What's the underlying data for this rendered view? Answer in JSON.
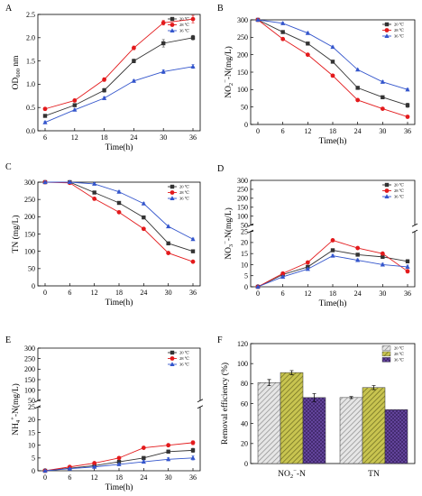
{
  "chart_data": [
    {
      "panel": "A",
      "type": "line",
      "x": [
        6,
        12,
        18,
        24,
        30,
        36
      ],
      "xlabel": "Time(h)",
      "ylabel": "OD600 nm",
      "xlim": [
        6,
        36
      ],
      "ylim": [
        0,
        2.5
      ],
      "yticks": [
        "0.0",
        "0.5",
        "1.0",
        "1.5",
        "2.0",
        "2.5"
      ],
      "legend": "top-right",
      "series": [
        {
          "name": "20 ℃",
          "color": "#333333",
          "marker": "square",
          "values": [
            0.32,
            0.55,
            0.87,
            1.5,
            1.88,
            2.0
          ],
          "err": [
            0.03,
            0.03,
            0.04,
            0.04,
            0.08,
            0.05
          ]
        },
        {
          "name": "28 ℃",
          "color": "#e31a1c",
          "marker": "circle",
          "values": [
            0.47,
            0.65,
            1.1,
            1.78,
            2.32,
            2.4
          ],
          "err": [
            0.03,
            0.03,
            0.04,
            0.04,
            0.05,
            0.08
          ]
        },
        {
          "name": "36 ℃",
          "color": "#3355cc",
          "marker": "triangle",
          "values": [
            0.18,
            0.45,
            0.7,
            1.07,
            1.27,
            1.38
          ],
          "err": [
            0.02,
            0.02,
            0.03,
            0.03,
            0.04,
            0.04
          ]
        }
      ]
    },
    {
      "panel": "B",
      "type": "line",
      "x": [
        0,
        6,
        12,
        18,
        24,
        30,
        36
      ],
      "xlabel": "Time(h)",
      "ylabel": "NO2−-N(mg/L)",
      "xlim": [
        0,
        36
      ],
      "ylim": [
        0,
        300
      ],
      "yticks": [
        "0",
        "50",
        "100",
        "150",
        "200",
        "250",
        "300"
      ],
      "legend": "top-right",
      "series": [
        {
          "name": "20 ℃",
          "color": "#333333",
          "marker": "square",
          "values": [
            300,
            265,
            232,
            180,
            105,
            78,
            55
          ],
          "err": [
            2,
            3,
            3,
            3,
            3,
            4,
            6
          ]
        },
        {
          "name": "28 ℃",
          "color": "#e31a1c",
          "marker": "circle",
          "values": [
            300,
            245,
            200,
            140,
            70,
            45,
            22
          ],
          "err": [
            2,
            3,
            3,
            3,
            3,
            3,
            3
          ]
        },
        {
          "name": "36 ℃",
          "color": "#3355cc",
          "marker": "triangle",
          "values": [
            300,
            290,
            262,
            222,
            157,
            122,
            100
          ],
          "err": [
            2,
            3,
            3,
            3,
            3,
            3,
            3
          ]
        }
      ]
    },
    {
      "panel": "C",
      "type": "line",
      "x": [
        0,
        6,
        12,
        18,
        24,
        30,
        36
      ],
      "xlabel": "Time(h)",
      "ylabel": "TN (mg/L)",
      "xlim": [
        0,
        36
      ],
      "ylim": [
        0,
        300
      ],
      "yticks": [
        "0",
        "50",
        "100",
        "150",
        "200",
        "250",
        "300"
      ],
      "legend": "top-right",
      "series": [
        {
          "name": "20 ℃",
          "color": "#333333",
          "marker": "square",
          "values": [
            300,
            300,
            270,
            240,
            198,
            123,
            100
          ],
          "err": [
            2,
            2,
            3,
            3,
            3,
            3,
            3
          ]
        },
        {
          "name": "28 ℃",
          "color": "#e31a1c",
          "marker": "circle",
          "values": [
            300,
            298,
            252,
            213,
            165,
            95,
            70
          ],
          "err": [
            2,
            2,
            3,
            3,
            3,
            3,
            3
          ]
        },
        {
          "name": "36 ℃",
          "color": "#3355cc",
          "marker": "triangle",
          "values": [
            300,
            300,
            295,
            272,
            238,
            172,
            135
          ],
          "err": [
            2,
            2,
            3,
            3,
            3,
            3,
            3
          ]
        }
      ]
    },
    {
      "panel": "D",
      "type": "line",
      "x": [
        0,
        6,
        12,
        18,
        24,
        30,
        36
      ],
      "xlabel": "Time(h)",
      "ylabel": "NO3−-N(mg/L)",
      "xlim": [
        0,
        36
      ],
      "ylim": [
        0,
        300
      ],
      "axis_break": [
        25,
        50
      ],
      "yticks": [
        "0",
        "5",
        "10",
        "15",
        "20",
        "25",
        "50",
        "100",
        "150",
        "200",
        "250",
        "300"
      ],
      "legend": "top-right",
      "series": [
        {
          "name": "20 ℃",
          "color": "#333333",
          "marker": "square",
          "values": [
            0,
            5.5,
            9,
            16.5,
            14.5,
            13.5,
            11.5
          ],
          "err": [
            0.2,
            0.4,
            0.5,
            0.6,
            0.6,
            0.6,
            0.8
          ]
        },
        {
          "name": "28 ℃",
          "color": "#e31a1c",
          "marker": "circle",
          "values": [
            0,
            6,
            11,
            21,
            17.5,
            15,
            7
          ],
          "err": [
            0.2,
            0.4,
            0.5,
            0.6,
            0.6,
            0.6,
            0.8
          ]
        },
        {
          "name": "36 ℃",
          "color": "#3355cc",
          "marker": "triangle",
          "values": [
            0,
            4.5,
            8,
            14,
            12,
            10,
            9
          ],
          "err": [
            0.2,
            0.4,
            0.5,
            0.6,
            0.6,
            0.6,
            0.8
          ]
        }
      ]
    },
    {
      "panel": "E",
      "type": "line",
      "x": [
        0,
        6,
        12,
        18,
        24,
        30,
        36
      ],
      "xlabel": "Time(h)",
      "ylabel": "NH4+-N(mg/L)",
      "xlim": [
        0,
        36
      ],
      "ylim": [
        0,
        300
      ],
      "axis_break": [
        25,
        50
      ],
      "yticks": [
        "0",
        "5",
        "10",
        "15",
        "20",
        "25",
        "50",
        "100",
        "150",
        "200",
        "250",
        "300"
      ],
      "legend": "top-right",
      "series": [
        {
          "name": "20 ℃",
          "color": "#333333",
          "marker": "square",
          "values": [
            0,
            1,
            2,
            3.5,
            5,
            7.5,
            8
          ],
          "err": [
            0.2,
            0.3,
            0.3,
            0.4,
            0.5,
            0.6,
            0.8
          ]
        },
        {
          "name": "28 ℃",
          "color": "#e31a1c",
          "marker": "circle",
          "values": [
            0,
            1.5,
            3,
            5,
            9,
            10,
            11
          ],
          "err": [
            0.2,
            0.3,
            0.3,
            0.4,
            0.5,
            0.6,
            0.8
          ]
        },
        {
          "name": "36 ℃",
          "color": "#3355cc",
          "marker": "triangle",
          "values": [
            0,
            0.8,
            1.5,
            2.5,
            3.5,
            4.5,
            5
          ],
          "err": [
            0.2,
            0.3,
            0.3,
            0.4,
            0.5,
            0.6,
            0.8
          ]
        }
      ]
    },
    {
      "panel": "F",
      "type": "bar",
      "categories": [
        "NO2−-N",
        "TN"
      ],
      "xlabel": "",
      "ylabel": "Removal efficiency (%)",
      "ylim": [
        0,
        120
      ],
      "yticks": [
        "0",
        "20",
        "40",
        "60",
        "80",
        "100",
        "120"
      ],
      "legend": "top-right",
      "series": [
        {
          "name": "20 ℃",
          "color": "#d9d9d9",
          "hatch": "diagonal",
          "values": [
            81,
            66
          ],
          "err": [
            3,
            1
          ]
        },
        {
          "name": "28 ℃",
          "color": "#b5b23a",
          "hatch": "diagonal",
          "values": [
            91,
            76
          ],
          "err": [
            2,
            2
          ]
        },
        {
          "name": "36 ℃",
          "color": "#5a3c93",
          "hatch": "cross",
          "values": [
            66,
            54
          ],
          "err": [
            4,
            0
          ]
        }
      ]
    }
  ]
}
